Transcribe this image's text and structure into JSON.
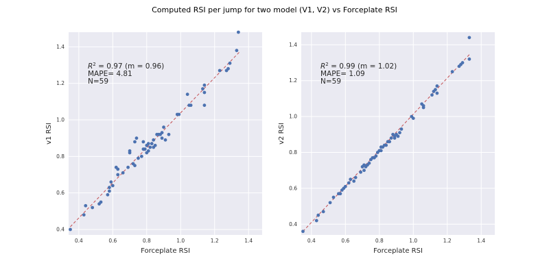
{
  "figure": {
    "title": "Computed RSI per jump for two model (V1, V2) vs Forceplate RSI"
  },
  "colors": {
    "background": "#ffffff",
    "panel": "#eaeaf2",
    "grid": "#ffffff",
    "points": "#4c72b0",
    "fit_line": "#c44e52"
  },
  "chart_data": [
    {
      "type": "scatter",
      "title": "",
      "xlabel": "Forceplate RSI",
      "ylabel": "v1 RSI",
      "xlim": [
        0.34,
        1.48
      ],
      "ylim": [
        0.37,
        1.48
      ],
      "xticks": [
        "0.4",
        "0.6",
        "0.8",
        "1.0",
        "1.2",
        "1.4"
      ],
      "yticks": [
        "0.4",
        "0.6",
        "0.8",
        "1.0",
        "1.2",
        "1.4"
      ],
      "grid": true,
      "annotation": {
        "r2_prefix": "R",
        "r2_sup": "2",
        "r2_text": " = 0.97 (m = 0.96)",
        "mape": "MAPE= 4.81",
        "n": "N=59"
      },
      "fit_line": {
        "x": [
          0.35,
          1.35
        ],
        "y": [
          0.415,
          1.375
        ]
      },
      "points": [
        [
          0.35,
          0.4
        ],
        [
          0.43,
          0.48
        ],
        [
          0.44,
          0.53
        ],
        [
          0.48,
          0.52
        ],
        [
          0.52,
          0.54
        ],
        [
          0.53,
          0.55
        ],
        [
          0.57,
          0.59
        ],
        [
          0.58,
          0.61
        ],
        [
          0.58,
          0.63
        ],
        [
          0.59,
          0.66
        ],
        [
          0.6,
          0.64
        ],
        [
          0.62,
          0.74
        ],
        [
          0.63,
          0.73
        ],
        [
          0.63,
          0.7
        ],
        [
          0.66,
          0.71
        ],
        [
          0.69,
          0.74
        ],
        [
          0.7,
          0.82
        ],
        [
          0.7,
          0.83
        ],
        [
          0.72,
          0.76
        ],
        [
          0.73,
          0.75
        ],
        [
          0.73,
          0.88
        ],
        [
          0.74,
          0.9
        ],
        [
          0.75,
          0.79
        ],
        [
          0.77,
          0.8
        ],
        [
          0.78,
          0.84
        ],
        [
          0.78,
          0.88
        ],
        [
          0.79,
          0.84
        ],
        [
          0.8,
          0.86
        ],
        [
          0.8,
          0.82
        ],
        [
          0.81,
          0.83
        ],
        [
          0.81,
          0.87
        ],
        [
          0.82,
          0.85
        ],
        [
          0.83,
          0.87
        ],
        [
          0.84,
          0.85
        ],
        [
          0.84,
          0.89
        ],
        [
          0.85,
          0.86
        ],
        [
          0.86,
          0.92
        ],
        [
          0.87,
          0.92
        ],
        [
          0.88,
          0.92
        ],
        [
          0.89,
          0.9
        ],
        [
          0.89,
          0.93
        ],
        [
          0.9,
          0.96
        ],
        [
          0.91,
          0.89
        ],
        [
          0.93,
          0.92
        ],
        [
          0.98,
          1.03
        ],
        [
          0.99,
          1.03
        ],
        [
          1.04,
          1.14
        ],
        [
          1.05,
          1.08
        ],
        [
          1.06,
          1.08
        ],
        [
          1.13,
          1.17
        ],
        [
          1.14,
          1.08
        ],
        [
          1.14,
          1.19
        ],
        [
          1.14,
          1.15
        ],
        [
          1.23,
          1.27
        ],
        [
          1.27,
          1.27
        ],
        [
          1.28,
          1.28
        ],
        [
          1.29,
          1.31
        ],
        [
          1.33,
          1.38
        ],
        [
          1.34,
          1.48
        ]
      ]
    },
    {
      "type": "scatter",
      "title": "",
      "xlabel": "Forceplate RSI",
      "ylabel": "v2 RSI",
      "xlim": [
        0.34,
        1.48
      ],
      "ylim": [
        0.34,
        1.47
      ],
      "xticks": [
        "0.4",
        "0.6",
        "0.8",
        "1.0",
        "1.2",
        "1.4"
      ],
      "yticks": [
        "0.4",
        "0.6",
        "0.8",
        "1.0",
        "1.2",
        "1.4"
      ],
      "grid": true,
      "annotation": {
        "r2_prefix": "R",
        "r2_sup": "2",
        "r2_text": " = 0.99 (m = 1.02)",
        "mape": "MAPE= 1.09",
        "n": "N=59"
      },
      "fit_line": {
        "x": [
          0.35,
          1.33
        ],
        "y": [
          0.36,
          1.345
        ]
      },
      "points": [
        [
          0.35,
          0.36
        ],
        [
          0.43,
          0.42
        ],
        [
          0.44,
          0.45
        ],
        [
          0.47,
          0.47
        ],
        [
          0.51,
          0.52
        ],
        [
          0.53,
          0.55
        ],
        [
          0.56,
          0.57
        ],
        [
          0.57,
          0.57
        ],
        [
          0.58,
          0.59
        ],
        [
          0.59,
          0.6
        ],
        [
          0.6,
          0.61
        ],
        [
          0.62,
          0.63
        ],
        [
          0.63,
          0.65
        ],
        [
          0.65,
          0.64
        ],
        [
          0.66,
          0.66
        ],
        [
          0.69,
          0.69
        ],
        [
          0.7,
          0.72
        ],
        [
          0.71,
          0.73
        ],
        [
          0.71,
          0.7
        ],
        [
          0.72,
          0.72
        ],
        [
          0.73,
          0.73
        ],
        [
          0.74,
          0.74
        ],
        [
          0.75,
          0.76
        ],
        [
          0.76,
          0.77
        ],
        [
          0.77,
          0.77
        ],
        [
          0.78,
          0.78
        ],
        [
          0.79,
          0.8
        ],
        [
          0.8,
          0.81
        ],
        [
          0.81,
          0.81
        ],
        [
          0.81,
          0.83
        ],
        [
          0.82,
          0.83
        ],
        [
          0.83,
          0.84
        ],
        [
          0.84,
          0.84
        ],
        [
          0.85,
          0.86
        ],
        [
          0.86,
          0.86
        ],
        [
          0.87,
          0.88
        ],
        [
          0.88,
          0.9
        ],
        [
          0.89,
          0.88
        ],
        [
          0.89,
          0.89
        ],
        [
          0.9,
          0.9
        ],
        [
          0.91,
          0.89
        ],
        [
          0.92,
          0.91
        ],
        [
          0.93,
          0.93
        ],
        [
          0.99,
          1.0
        ],
        [
          1.0,
          0.99
        ],
        [
          1.05,
          1.07
        ],
        [
          1.06,
          1.05
        ],
        [
          1.06,
          1.06
        ],
        [
          1.11,
          1.12
        ],
        [
          1.12,
          1.14
        ],
        [
          1.13,
          1.15
        ],
        [
          1.14,
          1.17
        ],
        [
          1.14,
          1.13
        ],
        [
          1.23,
          1.25
        ],
        [
          1.27,
          1.28
        ],
        [
          1.28,
          1.29
        ],
        [
          1.29,
          1.3
        ],
        [
          1.33,
          1.32
        ],
        [
          1.33,
          1.44
        ]
      ]
    }
  ]
}
